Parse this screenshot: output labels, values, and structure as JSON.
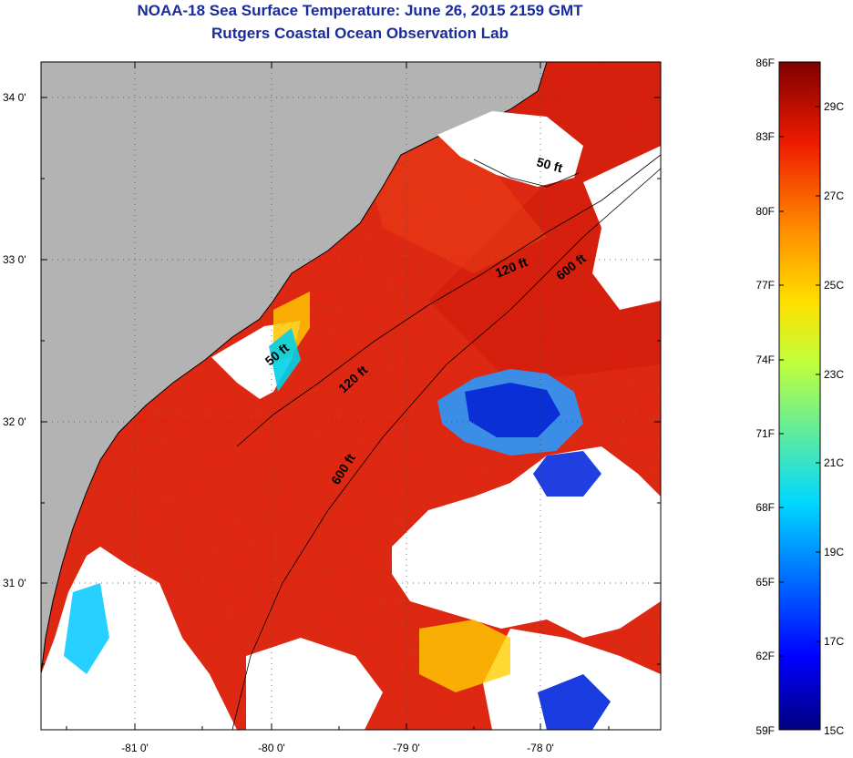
{
  "title": {
    "line1": "NOAA-18 Sea Surface Temperature:  June 26, 2015 2159 GMT",
    "line2": "Rutgers Coastal Ocean Observation Lab"
  },
  "map": {
    "lat_ticks": [
      "34 0'",
      "33 0'",
      "32 0'",
      "31 0'"
    ],
    "lon_ticks": [
      "-81 0'",
      "-80 0'",
      "-79 0'",
      "-78 0'"
    ],
    "contour_labels": [
      "50 ft",
      "120 ft",
      "600 ft",
      "50 ft",
      "120 ft",
      "600 ft"
    ],
    "colors": {
      "land": "#b3b3b3",
      "cloud": "#ffffff",
      "warm_water": "#e2240f"
    }
  },
  "colorbar": {
    "fahrenheit": [
      "86F",
      "83F",
      "80F",
      "77F",
      "74F",
      "71F",
      "68F",
      "65F",
      "62F",
      "59F"
    ],
    "celsius": [
      "29C",
      "27C",
      "25C",
      "23C",
      "21C",
      "19C",
      "17C",
      "15C"
    ]
  }
}
